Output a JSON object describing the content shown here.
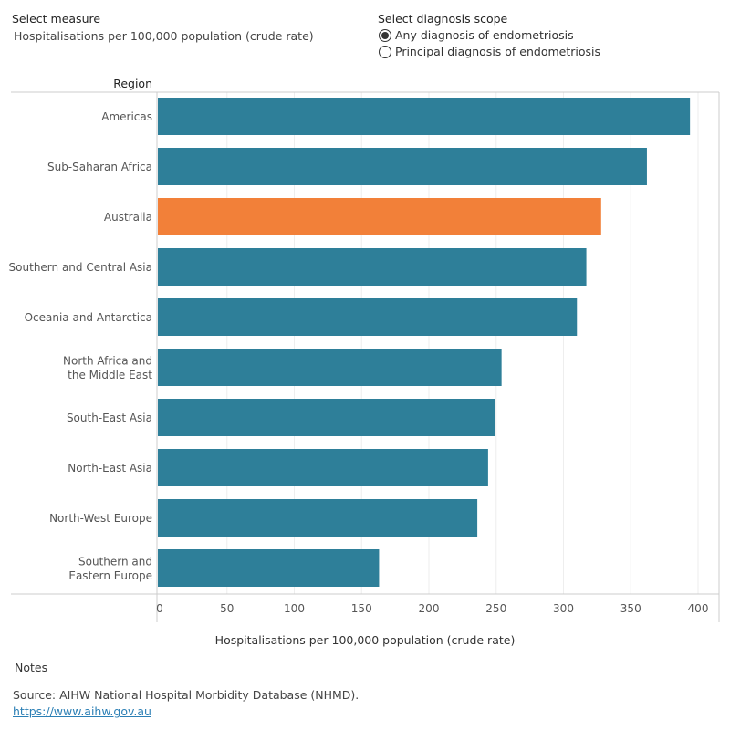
{
  "controls": {
    "measure_title": "Select measure",
    "measure_value": "Hospitalisations per 100,000 population (crude rate)",
    "scope_title": "Select diagnosis scope",
    "scope_options": [
      {
        "label": "Any diagnosis of endometriosis",
        "selected": true
      },
      {
        "label": "Principal diagnosis of endometriosis",
        "selected": false
      }
    ]
  },
  "chart_data": {
    "type": "bar",
    "orientation": "horizontal",
    "row_header": "Region",
    "categories": [
      "Americas",
      "Sub-Saharan Africa",
      "Australia",
      "Southern and Central Asia",
      "Oceania and Antarctica",
      "North Africa and the Middle East",
      "South-East Asia",
      "North-East Asia",
      "North-West Europe",
      "Southern and Eastern Europe"
    ],
    "values": [
      394,
      362,
      328,
      317,
      310,
      254,
      249,
      244,
      236,
      163
    ],
    "highlight": "Australia",
    "colors": {
      "bar": "#2e7f99",
      "highlight": "#f28039",
      "grid": "#eeeeee",
      "axis": "#cccccc"
    },
    "xlabel": "Hospitalisations per 100,000 population (crude rate)",
    "xlim": [
      0,
      415
    ],
    "xticks": [
      0,
      50,
      100,
      150,
      200,
      250,
      300,
      350,
      400
    ],
    "grid": true
  },
  "footer": {
    "notes": "Notes",
    "source": "Source: AIHW National Hospital Morbidity Database (NHMD).",
    "link": "https://www.aihw.gov.au"
  }
}
